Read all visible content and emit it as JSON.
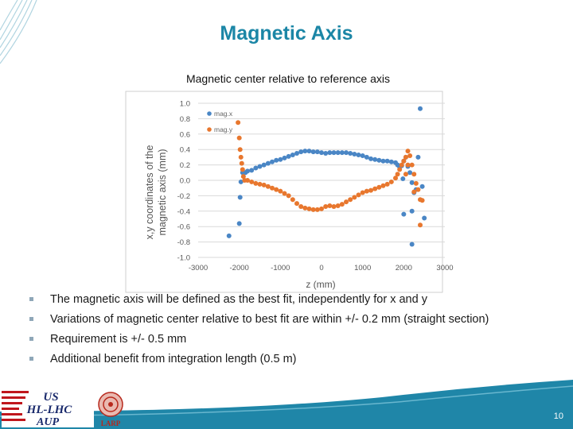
{
  "slide": {
    "title": "Magnetic Axis",
    "page_number": "10"
  },
  "bullets": [
    "The magnetic axis will be defined as the best fit, independently for x and y",
    "Variations of magnetic center relative to best fit are within +/- 0.2 mm (straight section)",
    "Requirement is +/- 0.5 mm",
    "Additional benefit from integration length (0.5 m)"
  ],
  "logos": {
    "us_hllhc": [
      "US",
      "HL-LHC",
      "AUP"
    ],
    "larp": "LARP"
  },
  "colors": {
    "title": "#1b86a6",
    "series_x": "#4a86c5",
    "series_y": "#e8772e",
    "footer": "#1f86a8"
  },
  "chart_data": {
    "type": "scatter",
    "title": "Magnetic center relative to reference axis",
    "xlabel": "z (mm)",
    "ylabel": "x,y coordinates of the magnetic axis (mm)",
    "xlim": [
      -3000,
      3000
    ],
    "ylim": [
      -1.0,
      1.0
    ],
    "xticks": [
      "-3000",
      "-2000",
      "-1000",
      "0",
      "1000",
      "2000",
      "3000"
    ],
    "yticks": [
      "1.0",
      "0.8",
      "0.6",
      "0.4",
      "0.2",
      "0.0",
      "-0.2",
      "-0.4",
      "-0.6",
      "-0.8",
      "-1.0"
    ],
    "grid": "horizontal",
    "legend_position": "top-left",
    "series": [
      {
        "name": "mag.x",
        "color": "#4a86c5",
        "points": [
          [
            -2250,
            -0.72
          ],
          [
            -2000,
            -0.56
          ],
          [
            -1980,
            -0.22
          ],
          [
            -1960,
            -0.02
          ],
          [
            -1920,
            0.1
          ],
          [
            -1850,
            0.1
          ],
          [
            -1800,
            0.12
          ],
          [
            -1700,
            0.13
          ],
          [
            -1600,
            0.16
          ],
          [
            -1500,
            0.18
          ],
          [
            -1400,
            0.2
          ],
          [
            -1300,
            0.22
          ],
          [
            -1200,
            0.24
          ],
          [
            -1100,
            0.26
          ],
          [
            -1000,
            0.27
          ],
          [
            -900,
            0.29
          ],
          [
            -800,
            0.31
          ],
          [
            -700,
            0.33
          ],
          [
            -600,
            0.35
          ],
          [
            -500,
            0.37
          ],
          [
            -400,
            0.38
          ],
          [
            -300,
            0.38
          ],
          [
            -200,
            0.37
          ],
          [
            -100,
            0.37
          ],
          [
            0,
            0.36
          ],
          [
            100,
            0.35
          ],
          [
            200,
            0.36
          ],
          [
            300,
            0.36
          ],
          [
            400,
            0.36
          ],
          [
            500,
            0.36
          ],
          [
            600,
            0.36
          ],
          [
            700,
            0.35
          ],
          [
            800,
            0.34
          ],
          [
            900,
            0.33
          ],
          [
            1000,
            0.32
          ],
          [
            1100,
            0.3
          ],
          [
            1200,
            0.28
          ],
          [
            1300,
            0.27
          ],
          [
            1400,
            0.26
          ],
          [
            1500,
            0.25
          ],
          [
            1600,
            0.25
          ],
          [
            1700,
            0.24
          ],
          [
            1800,
            0.23
          ],
          [
            1850,
            0.2
          ],
          [
            1900,
            0.17
          ],
          [
            1950,
            0.19
          ],
          [
            2000,
            0.25
          ],
          [
            2050,
            0.3
          ],
          [
            2100,
            0.18
          ],
          [
            2150,
            0.1
          ],
          [
            2200,
            -0.03
          ],
          [
            2250,
            -0.16
          ],
          [
            2300,
            -0.12
          ],
          [
            2350,
            0.3
          ],
          [
            2400,
            0.93
          ],
          [
            2450,
            -0.08
          ],
          [
            2500,
            -0.49
          ],
          [
            2200,
            -0.4
          ],
          [
            2000,
            -0.44
          ],
          [
            2200,
            -0.83
          ],
          [
            1980,
            0.02
          ]
        ]
      },
      {
        "name": "mag.y",
        "color": "#e8772e",
        "points": [
          [
            -2030,
            0.75
          ],
          [
            -2000,
            0.55
          ],
          [
            -1980,
            0.4
          ],
          [
            -1960,
            0.3
          ],
          [
            -1940,
            0.22
          ],
          [
            -1920,
            0.14
          ],
          [
            -1900,
            0.05
          ],
          [
            -1870,
            0.0
          ],
          [
            -1800,
            0.0
          ],
          [
            -1700,
            -0.02
          ],
          [
            -1600,
            -0.04
          ],
          [
            -1500,
            -0.05
          ],
          [
            -1400,
            -0.06
          ],
          [
            -1300,
            -0.08
          ],
          [
            -1200,
            -0.1
          ],
          [
            -1100,
            -0.12
          ],
          [
            -1000,
            -0.14
          ],
          [
            -900,
            -0.17
          ],
          [
            -800,
            -0.2
          ],
          [
            -700,
            -0.25
          ],
          [
            -600,
            -0.3
          ],
          [
            -500,
            -0.34
          ],
          [
            -400,
            -0.36
          ],
          [
            -300,
            -0.37
          ],
          [
            -200,
            -0.38
          ],
          [
            -100,
            -0.38
          ],
          [
            0,
            -0.37
          ],
          [
            100,
            -0.34
          ],
          [
            200,
            -0.33
          ],
          [
            300,
            -0.34
          ],
          [
            400,
            -0.33
          ],
          [
            500,
            -0.31
          ],
          [
            600,
            -0.28
          ],
          [
            700,
            -0.25
          ],
          [
            800,
            -0.22
          ],
          [
            900,
            -0.19
          ],
          [
            1000,
            -0.16
          ],
          [
            1100,
            -0.14
          ],
          [
            1200,
            -0.13
          ],
          [
            1300,
            -0.11
          ],
          [
            1400,
            -0.09
          ],
          [
            1500,
            -0.07
          ],
          [
            1600,
            -0.05
          ],
          [
            1700,
            -0.02
          ],
          [
            1800,
            0.03
          ],
          [
            1850,
            0.08
          ],
          [
            1900,
            0.14
          ],
          [
            1950,
            0.2
          ],
          [
            2000,
            0.25
          ],
          [
            2050,
            0.3
          ],
          [
            2100,
            0.38
          ],
          [
            2150,
            0.32
          ],
          [
            2200,
            0.2
          ],
          [
            2250,
            0.08
          ],
          [
            2300,
            -0.04
          ],
          [
            2350,
            -0.12
          ],
          [
            2400,
            -0.25
          ],
          [
            2450,
            -0.26
          ],
          [
            2400,
            -0.58
          ],
          [
            2050,
            0.08
          ],
          [
            2100,
            0.2
          ],
          [
            2250,
            -0.15
          ]
        ]
      }
    ]
  }
}
